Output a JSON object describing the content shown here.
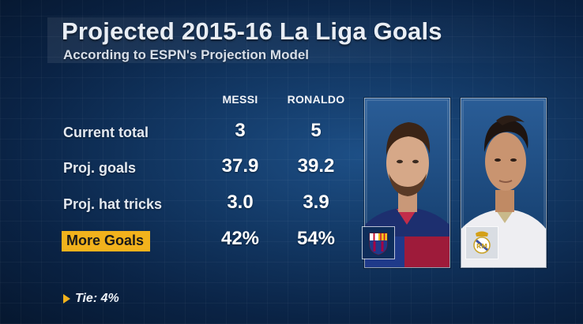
{
  "title": "Projected 2015-16 La Liga Goals",
  "subtitle": "According to ESPN's Projection Model",
  "columns": [
    "MESSI",
    "RONALDO"
  ],
  "rows": [
    {
      "label": "Current total",
      "values": [
        "3",
        "5"
      ]
    },
    {
      "label": "Proj. goals",
      "values": [
        "37.9",
        "39.2"
      ]
    },
    {
      "label": "Proj. hat tricks",
      "values": [
        "3.0",
        "3.9"
      ]
    },
    {
      "label": "More Goals",
      "values": [
        "42%",
        "54%"
      ]
    }
  ],
  "tie": "Tie: 4%",
  "colors": {
    "accent": "#f2b21c",
    "background": "#0f2f57",
    "text": "#ffffff"
  },
  "icons": [
    "play-triangle-icon",
    "barcelona-crest-icon",
    "real-madrid-crest-icon"
  ]
}
